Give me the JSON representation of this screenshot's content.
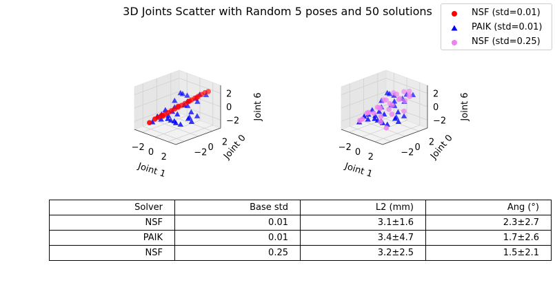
{
  "chart_data": {
    "type": "scatter",
    "title": "3D Joints Scatter with Random 5 poses and 50 solutions",
    "legend": {
      "placement": "top-right",
      "entries": [
        {
          "label": "NSF (std=0.01)",
          "marker": "circle",
          "color": "#ff0000"
        },
        {
          "label": "PAIK (std=0.01)",
          "marker": "triangle",
          "color": "#0000ff"
        },
        {
          "label": "NSF (std=0.25)",
          "marker": "circle",
          "color": "#ee82ee"
        }
      ]
    },
    "subplots": [
      {
        "xlabel": "Joint 1",
        "ylabel": "Joint 0",
        "zlabel": "Joint 6",
        "xticks": [
          "−2",
          "0",
          "2"
        ],
        "yticks": [
          "−2",
          "0",
          "2"
        ],
        "zticks": [
          "−2",
          "0",
          "2"
        ],
        "xlim": [
          -3.2,
          3.2
        ],
        "ylim": [
          -3.2,
          3.2
        ],
        "zlim": [
          -3.2,
          3.2
        ],
        "series": [
          {
            "name": "PAIK (std=0.01)",
            "marker": "triangle",
            "color": "#0000ff",
            "points": [
              [
                -2.8,
                -1.0,
                -2.8
              ],
              [
                -2.0,
                -0.5,
                -2.3
              ],
              [
                -1.6,
                -0.8,
                -1.3
              ],
              [
                -1.2,
                -0.2,
                -1.6
              ],
              [
                -1.0,
                0.5,
                -0.5
              ],
              [
                -0.8,
                0.0,
                -0.9
              ],
              [
                -0.5,
                1.2,
                1.4
              ],
              [
                -0.3,
                0.7,
                1.8
              ],
              [
                0.2,
                1.2,
                1.4
              ],
              [
                0.3,
                -0.3,
                -0.8
              ],
              [
                0.5,
                0.5,
                0.3
              ],
              [
                0.7,
                0.8,
                0.2
              ],
              [
                0.8,
                -1.2,
                -1.3
              ],
              [
                1.0,
                -0.5,
                -2.0
              ],
              [
                1.3,
                0.5,
                -1.2
              ],
              [
                1.5,
                1.2,
                1.4
              ],
              [
                1.8,
                1.5,
                2.0
              ],
              [
                2.0,
                1.0,
                1.2
              ],
              [
                2.2,
                -0.5,
                -0.7
              ],
              [
                2.5,
                0.5,
                -0.6
              ],
              [
                2.8,
                1.5,
                2.3
              ],
              [
                -1.5,
                -1.5,
                -1.3
              ],
              [
                -0.2,
                -1.2,
                -1.3
              ],
              [
                0.6,
                -0.8,
                -1.8
              ],
              [
                1.9,
                0.2,
                -0.1
              ],
              [
                -2.1,
                0.2,
                -1.2
              ],
              [
                -1.1,
                0.6,
                0.4
              ],
              [
                -0.6,
                -0.4,
                -2.0
              ],
              [
                0.9,
                0.6,
                1.0
              ],
              [
                2.4,
                -0.2,
                -1.2
              ]
            ]
          },
          {
            "name": "NSF (std=0.01)",
            "marker": "circle",
            "color": "#ff0000",
            "points": [
              [
                -2.6,
                -1.6,
                -2.6
              ],
              [
                -2.1,
                -1.3,
                -2.0
              ],
              [
                -1.8,
                -1.1,
                -1.7
              ],
              [
                -1.5,
                -0.9,
                -1.4
              ],
              [
                -1.2,
                -0.7,
                -1.2
              ],
              [
                -0.9,
                -0.5,
                -0.9
              ],
              [
                -0.6,
                -0.3,
                -0.6
              ],
              [
                -0.3,
                -0.1,
                -0.3
              ],
              [
                0.0,
                0.1,
                0.0
              ],
              [
                0.3,
                0.3,
                0.3
              ],
              [
                0.6,
                0.5,
                0.6
              ],
              [
                0.9,
                0.7,
                0.9
              ],
              [
                1.2,
                0.9,
                1.2
              ],
              [
                1.5,
                1.1,
                1.5
              ],
              [
                1.8,
                1.3,
                1.8
              ],
              [
                2.1,
                1.5,
                2.1
              ],
              [
                2.4,
                1.7,
                2.4
              ],
              [
                2.7,
                1.9,
                2.6
              ],
              [
                -1.4,
                -0.8,
                -1.5
              ],
              [
                0.1,
                0.0,
                0.2
              ],
              [
                1.0,
                0.8,
                1.0
              ],
              [
                1.7,
                1.2,
                1.6
              ]
            ]
          }
        ]
      },
      {
        "xlabel": "Joint 1",
        "ylabel": "Joint 0",
        "zlabel": "Joint 6",
        "xticks": [
          "−2",
          "0",
          "2"
        ],
        "yticks": [
          "−2",
          "0",
          "2"
        ],
        "zticks": [
          "−2",
          "0",
          "2"
        ],
        "xlim": [
          -3.2,
          3.2
        ],
        "ylim": [
          -3.2,
          3.2
        ],
        "zlim": [
          -3.2,
          3.2
        ],
        "series": [
          {
            "name": "PAIK (std=0.01)",
            "marker": "triangle",
            "color": "#0000ff",
            "points": [
              [
                -2.8,
                -1.0,
                -2.8
              ],
              [
                -2.0,
                -0.5,
                -2.3
              ],
              [
                -1.6,
                -0.8,
                -1.3
              ],
              [
                -1.2,
                -0.2,
                -1.6
              ],
              [
                -1.0,
                0.5,
                -0.5
              ],
              [
                -0.8,
                0.0,
                -0.9
              ],
              [
                -0.5,
                1.2,
                1.4
              ],
              [
                -0.3,
                0.7,
                1.8
              ],
              [
                0.2,
                1.2,
                1.4
              ],
              [
                0.3,
                -0.3,
                -0.8
              ],
              [
                0.5,
                0.5,
                0.3
              ],
              [
                0.7,
                0.8,
                0.2
              ],
              [
                0.8,
                -1.2,
                -1.3
              ],
              [
                1.0,
                -0.5,
                -2.0
              ],
              [
                1.3,
                0.5,
                -1.2
              ],
              [
                1.5,
                1.2,
                1.4
              ],
              [
                1.8,
                1.5,
                2.0
              ],
              [
                2.0,
                1.0,
                1.2
              ],
              [
                2.2,
                -0.5,
                -0.7
              ],
              [
                2.5,
                0.5,
                -0.6
              ],
              [
                2.8,
                1.5,
                2.3
              ],
              [
                -1.5,
                -1.5,
                -1.3
              ],
              [
                -0.2,
                -1.2,
                -1.3
              ],
              [
                0.6,
                -0.8,
                -1.8
              ],
              [
                1.9,
                0.2,
                -0.1
              ],
              [
                -2.1,
                0.2,
                -1.2
              ],
              [
                -1.1,
                0.6,
                0.4
              ],
              [
                -0.6,
                -0.4,
                -2.0
              ],
              [
                0.9,
                0.6,
                1.0
              ],
              [
                2.4,
                -0.2,
                -1.2
              ]
            ]
          },
          {
            "name": "NSF (std=0.25)",
            "marker": "circle",
            "color": "#ee82ee",
            "points": [
              [
                -2.5,
                -1.2,
                -2.4
              ],
              [
                -2.1,
                -0.3,
                -1.4
              ],
              [
                -1.7,
                -0.9,
                -1.1
              ],
              [
                -1.4,
                0.3,
                -0.6
              ],
              [
                -1.0,
                -0.6,
                -1.0
              ],
              [
                -0.7,
                0.9,
                0.5
              ],
              [
                -0.4,
                -0.2,
                -0.2
              ],
              [
                -0.1,
                1.4,
                1.6
              ],
              [
                0.2,
                0.6,
                0.4
              ],
              [
                0.4,
                -0.9,
                -1.7
              ],
              [
                0.7,
                1.1,
                1.8
              ],
              [
                1.0,
                0.2,
                0.6
              ],
              [
                1.3,
                1.6,
                2.2
              ],
              [
                1.6,
                -0.4,
                -0.3
              ],
              [
                1.9,
                1.8,
                2.4
              ],
              [
                2.2,
                0.9,
                1.4
              ],
              [
                2.5,
                1.3,
                2.0
              ],
              [
                -1.9,
                -1.4,
                -1.9
              ],
              [
                -0.9,
                0.1,
                -0.4
              ],
              [
                0.0,
                -0.5,
                -1.2
              ],
              [
                0.9,
                1.4,
                1.1
              ],
              [
                1.7,
                0.5,
                1.6
              ],
              [
                2.1,
                1.6,
                2.0
              ],
              [
                -1.2,
                1.0,
                0.3
              ],
              [
                0.5,
                0.2,
                -0.2
              ],
              [
                1.4,
                -1.0,
                -2.2
              ],
              [
                2.6,
                0.4,
                0.2
              ]
            ]
          }
        ]
      }
    ]
  },
  "table": {
    "columns": [
      "Solver",
      "Base std",
      "L2 (mm)",
      "Ang (°)"
    ],
    "rows": [
      [
        "NSF",
        "0.01",
        "3.1±1.6",
        "2.3±2.7"
      ],
      [
        "PAIK",
        "0.01",
        "3.4±4.7",
        "1.7±2.6"
      ],
      [
        "NSF",
        "0.25",
        "3.2±2.5",
        "1.5±2.1"
      ]
    ]
  }
}
